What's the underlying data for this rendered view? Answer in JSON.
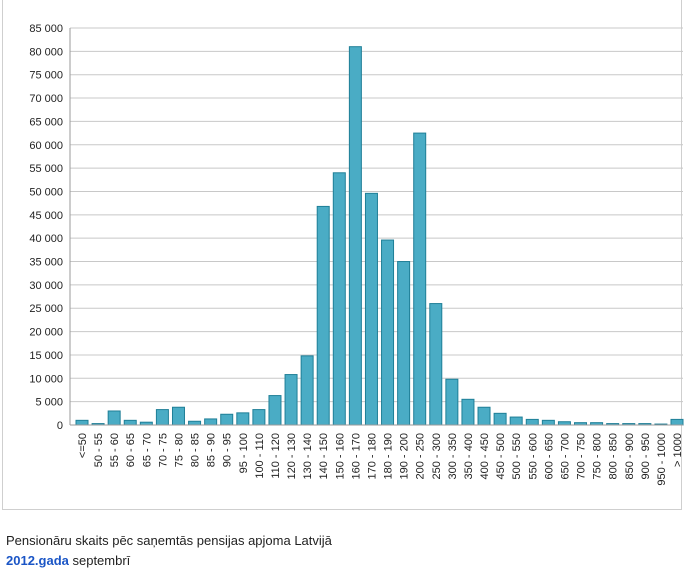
{
  "chart_data": {
    "type": "bar",
    "categories": [
      "<=50",
      "50 - 55",
      "55 - 60",
      "60 - 65",
      "65 - 70",
      "70 - 75",
      "75 - 80",
      "80 - 85",
      "85 - 90",
      "90 - 95",
      "95 - 100",
      "100 - 110",
      "110 - 120",
      "120 - 130",
      "130 - 140",
      "140 - 150",
      "150 - 160",
      "160 - 170",
      "170 - 180",
      "180 - 190",
      "190 - 200",
      "200 - 250",
      "250 - 300",
      "300 - 350",
      "350 - 400",
      "400 - 450",
      "450 - 500",
      "500 - 550",
      "550 - 600",
      "600 - 650",
      "650 - 700",
      "700 - 750",
      "750 - 800",
      "800 - 850",
      "850 - 900",
      "900 - 950",
      "950 - 1000",
      "> 1000"
    ],
    "values": [
      1000,
      300,
      3000,
      1000,
      600,
      3300,
      3800,
      800,
      1300,
      2300,
      2600,
      3300,
      6300,
      10800,
      14800,
      46800,
      54000,
      81000,
      49600,
      39600,
      35000,
      62500,
      26000,
      9800,
      5500,
      3800,
      2500,
      1700,
      1200,
      1000,
      700,
      500,
      500,
      300,
      300,
      300,
      200,
      1200
    ],
    "yticks": [
      "0",
      "5 000",
      "10 000",
      "15 000",
      "20 000",
      "25 000",
      "30 000",
      "35 000",
      "40 000",
      "45 000",
      "50 000",
      "55 000",
      "60 000",
      "65 000",
      "70 000",
      "75 000",
      "80 000",
      "85 000"
    ],
    "ylim": [
      0,
      85000
    ],
    "grid": true,
    "bar_color": "#4aacc5"
  },
  "caption": {
    "line1": "Pensionāru skaits pēc saņemtās pensijas apjoma Latvijā",
    "year_link": "2012.gada",
    "line2_rest": " septembrī"
  }
}
